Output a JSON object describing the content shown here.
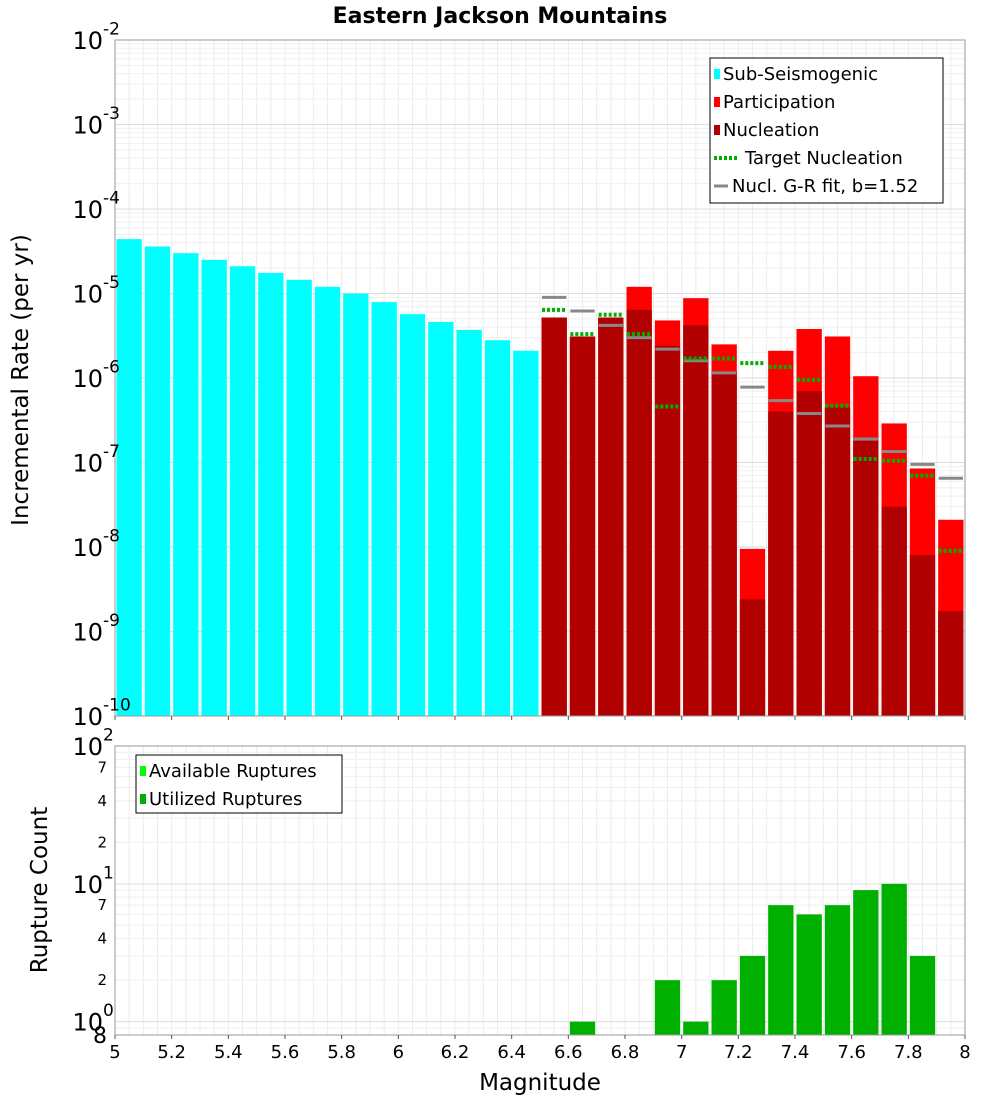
{
  "colors": {
    "sub_seismogenic": "#00ffff",
    "participation": "#ff0000",
    "nucleation": "#b00000",
    "target_nucleation": "#00b000",
    "gr_fit": "#888888",
    "available_ruptures": "#00ff00",
    "utilized_ruptures": "#00b000"
  },
  "chart_data": [
    {
      "type": "bar",
      "title": "Eastern Jackson Mountains",
      "xlabel": "",
      "ylabel": "Incremental Rate (per yr)",
      "xlim": [
        5,
        8
      ],
      "ylim": [
        1e-10,
        0.01
      ],
      "yscale": "log",
      "grid": true,
      "legend_position": "top-right",
      "x_ticks": [
        "5",
        "5.2",
        "5.4",
        "5.6",
        "5.8",
        "6",
        "6.2",
        "6.4",
        "6.6",
        "6.8",
        "7",
        "7.2",
        "7.4",
        "7.6",
        "7.8",
        "8"
      ],
      "y_ticks": [
        {
          "base": "10",
          "exp": "-10"
        },
        {
          "base": "10",
          "exp": "-9"
        },
        {
          "base": "10",
          "exp": "-8"
        },
        {
          "base": "10",
          "exp": "-7"
        },
        {
          "base": "10",
          "exp": "-6"
        },
        {
          "base": "10",
          "exp": "-5"
        },
        {
          "base": "10",
          "exp": "-4"
        },
        {
          "base": "10",
          "exp": "-3"
        },
        {
          "base": "10",
          "exp": "-2"
        }
      ],
      "legend": [
        {
          "label": "Sub-Seismogenic",
          "kind": "box",
          "color": "#00ffff"
        },
        {
          "label": "Participation",
          "kind": "box",
          "color": "#ff0000"
        },
        {
          "label": "Nucleation",
          "kind": "box",
          "color": "#b00000"
        },
        {
          "label": "Target Nucleation",
          "kind": "dotted",
          "color": "#00b000"
        },
        {
          "label": "Nucl. G-R fit, b=1.52",
          "kind": "line",
          "color": "#888888"
        }
      ],
      "bin_width": 0.1,
      "series": [
        {
          "name": "Sub-Seismogenic",
          "style": "bar",
          "x": [
            5.05,
            5.15,
            5.25,
            5.35,
            5.45,
            5.55,
            5.65,
            5.75,
            5.85,
            5.95,
            6.05,
            6.15,
            6.25,
            6.35,
            6.45
          ],
          "values": [
            4.4e-05,
            3.6e-05,
            3e-05,
            2.5e-05,
            2.1e-05,
            1.75e-05,
            1.45e-05,
            1.2e-05,
            1e-05,
            7.9e-06,
            5.7e-06,
            4.6e-06,
            3.7e-06,
            2.8e-06,
            2.1e-06
          ]
        },
        {
          "name": "Participation",
          "style": "bar",
          "x": [
            6.55,
            6.65,
            6.75,
            6.85,
            6.95,
            7.05,
            7.15,
            7.25,
            7.35,
            7.45,
            7.55,
            7.65,
            7.75,
            7.85,
            7.95
          ],
          "values": [
            5.2e-06,
            3.1e-06,
            5.2e-06,
            1.2e-05,
            4.8e-06,
            8.8e-06,
            2.5e-06,
            9.5e-09,
            2.1e-06,
            3.8e-06,
            3.1e-06,
            1.05e-06,
            2.9e-07,
            8.5e-08,
            2.1e-08
          ]
        },
        {
          "name": "Nucleation",
          "style": "bar",
          "x": [
            6.55,
            6.65,
            6.75,
            6.85,
            6.95,
            7.05,
            7.15,
            7.25,
            7.35,
            7.45,
            7.55,
            7.65,
            7.75,
            7.85,
            7.95
          ],
          "values": [
            5.2e-06,
            3.1e-06,
            5.2e-06,
            6.4e-06,
            2.4e-06,
            4.2e-06,
            1.2e-06,
            2.4e-09,
            4e-07,
            7e-07,
            4.5e-07,
            1.8e-07,
            3e-08,
            8e-09,
            1.75e-09
          ]
        },
        {
          "name": "Target Nucleation",
          "style": "dotted-step",
          "x": [
            6.55,
            6.65,
            6.75,
            6.85,
            6.95,
            7.05,
            7.15,
            7.25,
            7.35,
            7.45,
            7.55,
            7.65,
            7.75,
            7.85,
            7.95
          ],
          "values": [
            6.4e-06,
            3.3e-06,
            5.6e-06,
            3.3e-06,
            4.6e-07,
            1.7e-06,
            1.7e-06,
            1.5e-06,
            1.35e-06,
            9.5e-07,
            4.7e-07,
            1.1e-07,
            1.05e-07,
            7e-08,
            9e-09
          ]
        },
        {
          "name": "Nucl. G-R fit, b=1.52",
          "style": "solid-step",
          "x": [
            6.55,
            6.65,
            6.75,
            6.85,
            6.95,
            7.05,
            7.15,
            7.25,
            7.35,
            7.45,
            7.55,
            7.65,
            7.75,
            7.85,
            7.95
          ],
          "values": [
            9e-06,
            6.2e-06,
            4.2e-06,
            3e-06,
            2.2e-06,
            1.6e-06,
            1.15e-06,
            7.8e-07,
            5.4e-07,
            3.8e-07,
            2.7e-07,
            1.9e-07,
            1.35e-07,
            9.5e-08,
            6.5e-08
          ]
        }
      ]
    },
    {
      "type": "bar",
      "title": "",
      "xlabel": "Magnitude",
      "ylabel": "Rupture Count",
      "xlim": [
        5,
        8
      ],
      "ylim": [
        0.8,
        100
      ],
      "yscale": "log",
      "grid": true,
      "legend_position": "top-left",
      "x_ticks": [
        "5",
        "5.2",
        "5.4",
        "5.6",
        "5.8",
        "6",
        "6.2",
        "6.4",
        "6.6",
        "6.8",
        "7",
        "7.2",
        "7.4",
        "7.6",
        "7.8",
        "8"
      ],
      "y_major_ticks": [
        {
          "base": "10",
          "exp": "0"
        },
        {
          "base": "10",
          "exp": "1"
        },
        {
          "base": "10",
          "exp": "2"
        }
      ],
      "y_minor_ticks": [
        "2",
        "4",
        "7",
        "2",
        "4",
        "7"
      ],
      "y_bottom_label": "8",
      "legend": [
        {
          "label": "Available Ruptures",
          "kind": "box",
          "color": "#00ff00"
        },
        {
          "label": "Utilized Ruptures",
          "kind": "box",
          "color": "#00b000"
        }
      ],
      "bin_width": 0.1,
      "series": [
        {
          "name": "Utilized Ruptures",
          "style": "bar",
          "x": [
            6.65,
            6.95,
            7.05,
            7.15,
            7.25,
            7.35,
            7.45,
            7.55,
            7.65,
            7.75,
            7.85
          ],
          "values": [
            1,
            2,
            1,
            2,
            3,
            7,
            6,
            7,
            9,
            10,
            3
          ]
        }
      ]
    }
  ]
}
